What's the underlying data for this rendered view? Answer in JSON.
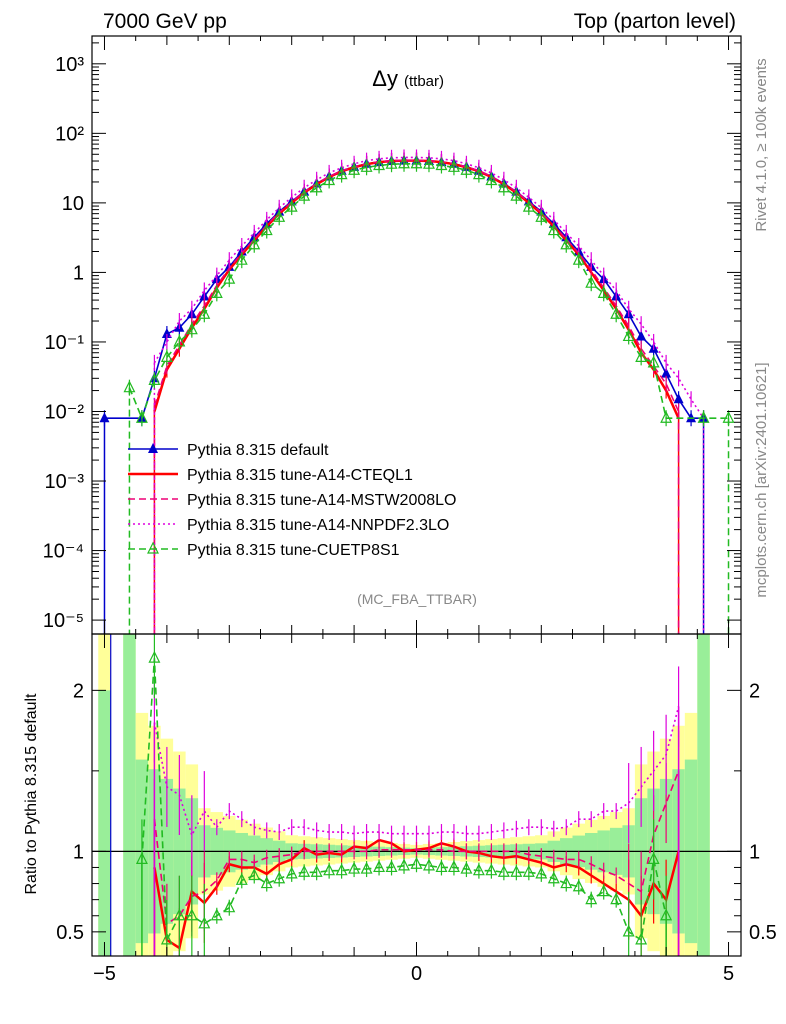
{
  "header": {
    "left": "7000 GeV pp",
    "right": "Top (parton level)"
  },
  "side_labels": {
    "top": "Rivet 4.1.0, ≥ 100k events",
    "bottom": "mcplots.cern.ch [arXiv:2401.10621]"
  },
  "chart_data": [
    {
      "type": "line",
      "panel": "main",
      "title": "Δy",
      "title_suffix": "(ttbar)",
      "watermark": "(MC_FBA_TTBAR)",
      "xlim": [
        -5.2,
        5.2
      ],
      "ylim_log10": [
        -5.2,
        3.4
      ],
      "yscale": "log",
      "y_tick_labels": [
        "10⁻⁵",
        "10⁻⁴",
        "10⁻³",
        "10⁻²",
        "10⁻¹",
        "1",
        "10",
        "10²",
        "10³"
      ],
      "legend": [
        "Pythia 8.315 default",
        "Pythia 8.315 tune-A14-CTEQL1",
        "Pythia 8.315 tune-A14-MSTW2008LO",
        "Pythia 8.315 tune-A14-NNPDF2.3LO",
        "Pythia 8.315 tune-CUETP8S1"
      ],
      "series": [
        {
          "name": "Pythia 8.315 default",
          "color": "#0000cc",
          "style": "solid",
          "marker": "filled-triangle",
          "x": [
            -5.0,
            -4.4,
            -4.2,
            -4.0,
            -3.8,
            -3.6,
            -3.4,
            -3.2,
            -3.0,
            -2.8,
            -2.6,
            -2.4,
            -2.2,
            -2.0,
            -1.8,
            -1.6,
            -1.4,
            -1.2,
            -1.0,
            -0.8,
            -0.6,
            -0.4,
            -0.2,
            0.0,
            0.2,
            0.4,
            0.6,
            0.8,
            1.0,
            1.2,
            1.4,
            1.6,
            1.8,
            2.0,
            2.2,
            2.4,
            2.6,
            2.8,
            3.0,
            3.2,
            3.4,
            3.6,
            3.8,
            4.0,
            4.2,
            4.4,
            4.6
          ],
          "y": [
            0.008,
            0.008,
            0.03,
            0.13,
            0.16,
            0.25,
            0.45,
            0.8,
            1.2,
            2.0,
            3.2,
            5.0,
            7.5,
            10.5,
            14.5,
            19.0,
            24.0,
            29.0,
            33.0,
            36.5,
            38.5,
            40.0,
            40.5,
            40.5,
            40.0,
            38.5,
            36.5,
            33.0,
            29.0,
            24.0,
            19.0,
            14.5,
            10.5,
            7.5,
            5.0,
            3.2,
            2.0,
            1.2,
            0.8,
            0.45,
            0.25,
            0.12,
            0.08,
            0.035,
            0.015,
            0.008,
            0.008
          ]
        },
        {
          "name": "Pythia 8.315 tune-A14-CTEQL1",
          "color": "#ff0000",
          "style": "solid",
          "marker": "none",
          "x": [
            -4.2,
            -4.0,
            -3.8,
            -3.6,
            -3.4,
            -3.2,
            -3.0,
            -2.8,
            -2.6,
            -2.4,
            -2.2,
            -2.0,
            -1.8,
            -1.6,
            -1.4,
            -1.2,
            -1.0,
            -0.8,
            -0.6,
            -0.4,
            -0.2,
            0.0,
            0.2,
            0.4,
            0.6,
            0.8,
            1.0,
            1.2,
            1.4,
            1.6,
            1.8,
            2.0,
            2.2,
            2.4,
            2.6,
            2.8,
            3.0,
            3.2,
            3.4,
            3.6,
            3.8,
            4.0,
            4.2
          ],
          "y": [
            0.01,
            0.04,
            0.08,
            0.16,
            0.3,
            0.6,
            1.1,
            1.8,
            2.9,
            4.6,
            7.0,
            10.0,
            14.0,
            18.5,
            23.5,
            28.5,
            32.5,
            36.0,
            38.5,
            40.0,
            40.5,
            40.5,
            40.0,
            38.5,
            36.0,
            32.5,
            28.5,
            23.5,
            18.5,
            14.0,
            10.0,
            7.0,
            4.6,
            2.9,
            1.8,
            1.0,
            0.55,
            0.3,
            0.15,
            0.07,
            0.04,
            0.02,
            0.008
          ]
        },
        {
          "name": "Pythia 8.315 tune-A14-MSTW2008LO",
          "color": "#ee0077",
          "style": "dashed",
          "marker": "none",
          "x": [
            -4.2,
            -4.0,
            -3.8,
            -3.6,
            -3.4,
            -3.2,
            -3.0,
            -2.8,
            -2.6,
            -2.4,
            -2.2,
            -2.0,
            -1.8,
            -1.6,
            -1.4,
            -1.2,
            -1.0,
            -0.8,
            -0.6,
            -0.4,
            -0.2,
            0.0,
            0.2,
            0.4,
            0.6,
            0.8,
            1.0,
            1.2,
            1.4,
            1.6,
            1.8,
            2.0,
            2.2,
            2.4,
            2.6,
            2.8,
            3.0,
            3.2,
            3.4,
            3.6,
            3.8,
            4.0,
            4.2
          ],
          "y": [
            0.012,
            0.045,
            0.09,
            0.18,
            0.33,
            0.65,
            1.15,
            1.9,
            3.0,
            4.8,
            7.3,
            10.3,
            14.5,
            19.0,
            24.0,
            29.0,
            33.0,
            36.5,
            39.0,
            40.5,
            41.0,
            41.0,
            40.5,
            39.0,
            36.5,
            33.0,
            29.0,
            24.0,
            19.0,
            14.5,
            10.3,
            7.3,
            4.8,
            3.0,
            1.9,
            1.1,
            0.6,
            0.33,
            0.17,
            0.08,
            0.045,
            0.025,
            0.01
          ]
        },
        {
          "name": "Pythia 8.315 tune-A14-NNPDF2.3LO",
          "color": "#dd00dd",
          "style": "dotted",
          "marker": "none",
          "x": [
            -4.2,
            -4.0,
            -3.8,
            -3.6,
            -3.4,
            -3.2,
            -3.0,
            -2.8,
            -2.6,
            -2.4,
            -2.2,
            -2.0,
            -1.8,
            -1.6,
            -1.4,
            -1.2,
            -1.0,
            -0.8,
            -0.6,
            -0.4,
            -0.2,
            0.0,
            0.2,
            0.4,
            0.6,
            0.8,
            1.0,
            1.2,
            1.4,
            1.6,
            1.8,
            2.0,
            2.2,
            2.4,
            2.6,
            2.8,
            3.0,
            3.2,
            3.4,
            3.6,
            3.8,
            4.0,
            4.2,
            4.4,
            4.6
          ],
          "y": [
            0.05,
            0.1,
            0.2,
            0.3,
            0.55,
            0.9,
            1.5,
            2.4,
            3.7,
            5.7,
            8.5,
            12.0,
            16.5,
            21.5,
            27.0,
            32.0,
            36.5,
            40.5,
            43.0,
            44.5,
            45.0,
            45.0,
            44.5,
            43.0,
            40.5,
            36.5,
            32.0,
            27.0,
            21.5,
            16.5,
            12.0,
            8.5,
            5.7,
            3.7,
            2.4,
            1.5,
            0.9,
            0.55,
            0.3,
            0.18,
            0.1,
            0.05,
            0.03,
            0.015,
            0.008
          ]
        },
        {
          "name": "Pythia 8.315 tune-CUETP8S1",
          "color": "#22bb22",
          "style": "dashed",
          "marker": "open-triangle",
          "x": [
            -4.6,
            -4.4,
            -4.2,
            -4.0,
            -3.8,
            -3.6,
            -3.4,
            -3.2,
            -3.0,
            -2.8,
            -2.6,
            -2.4,
            -2.2,
            -2.0,
            -1.8,
            -1.6,
            -1.4,
            -1.2,
            -1.0,
            -0.8,
            -0.6,
            -0.4,
            -0.2,
            0.0,
            0.2,
            0.4,
            0.6,
            0.8,
            1.0,
            1.2,
            1.4,
            1.6,
            1.8,
            2.0,
            2.2,
            2.4,
            2.6,
            2.8,
            3.0,
            3.2,
            3.4,
            3.6,
            3.8,
            4.0,
            4.6,
            5.0
          ],
          "y": [
            0.022,
            0.008,
            0.028,
            0.06,
            0.1,
            0.15,
            0.25,
            0.5,
            0.8,
            1.5,
            2.5,
            4.0,
            6.2,
            8.7,
            12.5,
            16.5,
            21.0,
            25.5,
            29.5,
            32.5,
            34.5,
            36.0,
            36.5,
            36.5,
            36.0,
            34.5,
            32.5,
            29.5,
            25.5,
            21.0,
            16.5,
            12.5,
            8.7,
            6.2,
            4.0,
            2.5,
            1.5,
            0.7,
            0.5,
            0.25,
            0.12,
            0.06,
            0.05,
            0.008,
            0.008,
            0.008
          ]
        }
      ]
    },
    {
      "type": "line",
      "panel": "ratio",
      "ylabel": "Ratio to Pythia 8.315 default",
      "xlim": [
        -5.2,
        5.2
      ],
      "ylim": [
        0.35,
        2.35
      ],
      "x_tick_labels": [
        "−5",
        "0",
        "5"
      ],
      "y_tick_labels": [
        "0.5",
        "1",
        "2"
      ],
      "reference_line": 1.0,
      "series": [
        {
          "name": "Pythia 8.315 tune-A14-CTEQL1",
          "x": [
            -4.2,
            -4.0,
            -3.8,
            -3.6,
            -3.4,
            -3.2,
            -3.0,
            -2.8,
            -2.6,
            -2.4,
            -2.2,
            -2.0,
            -1.8,
            -1.6,
            -1.4,
            -1.2,
            -1.0,
            -0.8,
            -0.6,
            -0.4,
            -0.2,
            0.0,
            0.2,
            0.4,
            0.6,
            0.8,
            1.0,
            1.2,
            1.4,
            1.6,
            1.8,
            2.0,
            2.2,
            2.4,
            2.6,
            2.8,
            3.0,
            3.2,
            3.4,
            3.6,
            3.8,
            4.0,
            4.2
          ],
          "y": [
            0.9,
            0.45,
            0.4,
            0.75,
            0.68,
            0.78,
            0.92,
            0.9,
            0.9,
            0.86,
            0.92,
            0.95,
            1.02,
            0.98,
            0.99,
            0.98,
            1.03,
            1.02,
            1.07,
            1.05,
            1.0,
            1.01,
            1.02,
            1.05,
            1.03,
            1.0,
            0.99,
            0.97,
            0.96,
            0.97,
            0.95,
            0.93,
            0.9,
            0.92,
            0.9,
            0.85,
            0.8,
            0.75,
            0.7,
            0.6,
            0.8,
            0.7,
            1.0
          ]
        },
        {
          "name": "Pythia 8.315 tune-A14-MSTW2008LO",
          "x": [
            -4.2,
            -4.0,
            -3.8,
            -3.6,
            -3.4,
            -3.2,
            -3.0,
            -2.8,
            -2.6,
            -2.4,
            -2.2,
            -2.0,
            -1.8,
            -1.6,
            -1.4,
            -1.2,
            -1.0,
            -0.8,
            -0.6,
            -0.4,
            -0.2,
            0.0,
            0.2,
            0.4,
            0.6,
            0.8,
            1.0,
            1.2,
            1.4,
            1.6,
            1.8,
            2.0,
            2.2,
            2.4,
            2.6,
            2.8,
            3.0,
            3.2,
            3.4,
            3.6,
            3.8,
            4.0,
            4.2
          ],
          "y": [
            1.2,
            0.55,
            0.6,
            0.72,
            0.75,
            0.82,
            0.95,
            0.95,
            0.93,
            0.96,
            0.97,
            0.98,
            1.0,
            1.0,
            1.0,
            1.0,
            1.0,
            1.0,
            1.01,
            1.01,
            1.01,
            1.01,
            1.01,
            1.01,
            1.0,
            1.0,
            1.0,
            1.0,
            1.0,
            1.0,
            0.98,
            0.97,
            0.96,
            0.95,
            0.95,
            0.92,
            0.88,
            0.85,
            0.8,
            0.75,
            1.1,
            1.3,
            1.5
          ]
        },
        {
          "name": "Pythia 8.315 tune-A14-NNPDF2.3LO",
          "x": [
            -4.2,
            -4.0,
            -3.8,
            -3.6,
            -3.4,
            -3.2,
            -3.0,
            -2.8,
            -2.6,
            -2.4,
            -2.2,
            -2.0,
            -1.8,
            -1.6,
            -1.4,
            -1.2,
            -1.0,
            -0.8,
            -0.6,
            -0.4,
            -0.2,
            0.0,
            0.2,
            0.4,
            0.6,
            0.8,
            1.0,
            1.2,
            1.4,
            1.6,
            1.8,
            2.0,
            2.2,
            2.4,
            2.6,
            2.8,
            3.0,
            3.2,
            3.4,
            3.6,
            3.8,
            4.0,
            4.2
          ],
          "y": [
            1.8,
            1.4,
            1.35,
            1.1,
            1.25,
            1.15,
            1.25,
            1.2,
            1.15,
            1.13,
            1.12,
            1.15,
            1.15,
            1.13,
            1.12,
            1.12,
            1.11,
            1.12,
            1.12,
            1.11,
            1.11,
            1.11,
            1.11,
            1.12,
            1.12,
            1.11,
            1.11,
            1.12,
            1.13,
            1.14,
            1.15,
            1.15,
            1.14,
            1.15,
            1.2,
            1.2,
            1.25,
            1.25,
            1.3,
            1.4,
            1.5,
            1.6,
            1.9
          ]
        },
        {
          "name": "Pythia 8.315 tune-CUETP8S1",
          "x": [
            -4.4,
            -4.2,
            -4.0,
            -3.8,
            -3.6,
            -3.4,
            -3.2,
            -3.0,
            -2.8,
            -2.6,
            -2.4,
            -2.2,
            -2.0,
            -1.8,
            -1.6,
            -1.4,
            -1.2,
            -1.0,
            -0.8,
            -0.6,
            -0.4,
            -0.2,
            0.0,
            0.2,
            0.4,
            0.6,
            0.8,
            1.0,
            1.2,
            1.4,
            1.6,
            1.8,
            2.0,
            2.2,
            2.4,
            2.6,
            2.8,
            3.0,
            3.2,
            3.4,
            3.6,
            3.8,
            4.0
          ],
          "y": [
            0.95,
            2.2,
            0.45,
            0.6,
            0.6,
            0.55,
            0.6,
            0.65,
            0.82,
            0.85,
            0.8,
            0.83,
            0.86,
            0.87,
            0.87,
            0.88,
            0.88,
            0.89,
            0.89,
            0.9,
            0.9,
            0.91,
            0.92,
            0.91,
            0.9,
            0.9,
            0.89,
            0.88,
            0.88,
            0.87,
            0.87,
            0.87,
            0.86,
            0.83,
            0.8,
            0.78,
            0.7,
            0.75,
            0.7,
            0.5,
            0.45,
            0.95,
            0.6
          ]
        }
      ]
    }
  ]
}
